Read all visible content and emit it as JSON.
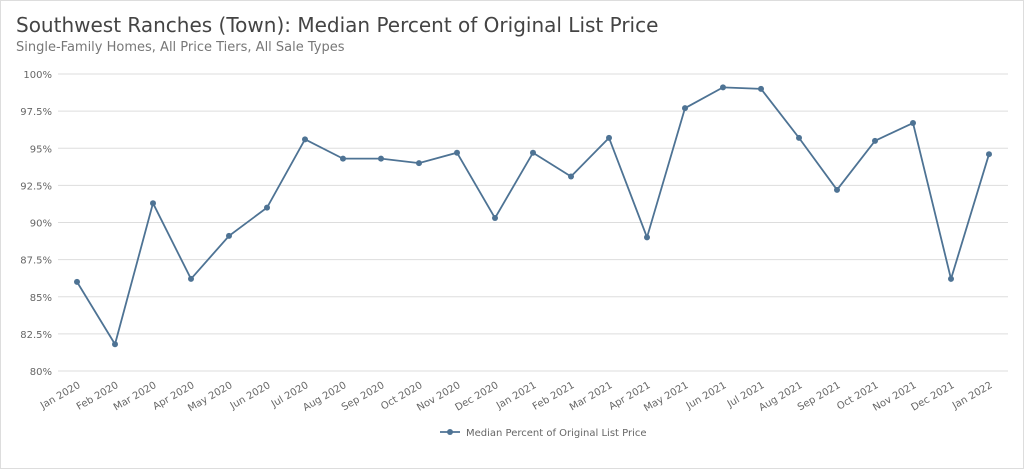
{
  "chart_data": {
    "type": "line",
    "title": "Southwest Ranches (Town): Median Percent of Original List Price",
    "subtitle": "Single-Family Homes, All Price Tiers, All Sale Types",
    "categories": [
      "Jan 2020",
      "Feb 2020",
      "Mar 2020",
      "Apr 2020",
      "May 2020",
      "Jun 2020",
      "Jul 2020",
      "Aug 2020",
      "Sep 2020",
      "Oct 2020",
      "Nov 2020",
      "Dec 2020",
      "Jan 2021",
      "Feb 2021",
      "Mar 2021",
      "Apr 2021",
      "May 2021",
      "Jun 2021",
      "Jul 2021",
      "Aug 2021",
      "Sep 2021",
      "Oct 2021",
      "Nov 2021",
      "Dec 2021",
      "Jan 2022"
    ],
    "series": [
      {
        "name": "Median Percent of Original List Price",
        "color": "#4e7394",
        "values": [
          86.0,
          81.8,
          91.3,
          86.2,
          89.1,
          91.0,
          95.6,
          94.3,
          94.3,
          94.0,
          94.7,
          90.3,
          94.7,
          93.1,
          95.7,
          89.0,
          97.7,
          99.1,
          99.0,
          95.7,
          92.2,
          95.5,
          96.7,
          86.2,
          94.6
        ]
      }
    ],
    "ylim": [
      80,
      100
    ],
    "yticks": [
      {
        "value": 80,
        "label": "80%"
      },
      {
        "value": 82.5,
        "label": "82.5%"
      },
      {
        "value": 85,
        "label": "85%"
      },
      {
        "value": 87.5,
        "label": "87.5%"
      },
      {
        "value": 90,
        "label": "90%"
      },
      {
        "value": 92.5,
        "label": "92.5%"
      },
      {
        "value": 95,
        "label": "95%"
      },
      {
        "value": 97.5,
        "label": "97.5%"
      },
      {
        "value": 100,
        "label": "100%"
      }
    ],
    "grid": true,
    "legend": "bottom"
  }
}
